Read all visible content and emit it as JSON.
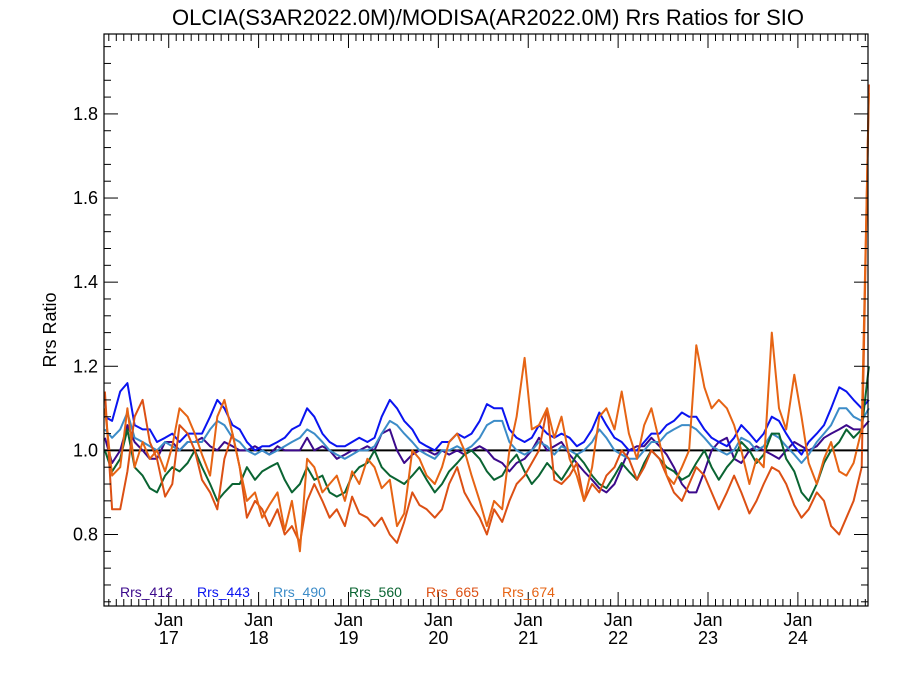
{
  "chart_data": {
    "type": "line",
    "title": "OLCIA(S3AR2022.0M)/MODISA(AR2022.0M)  Rrs Ratios for SIO",
    "xlabel": "",
    "ylabel": "Rrs Ratio",
    "ylim": [
      0.63,
      1.99
    ],
    "xlim": [
      2016.28,
      2024.78
    ],
    "yticks": [
      0.8,
      1.0,
      1.2,
      1.4,
      1.6,
      1.8
    ],
    "ytick_labels": [
      "0.8",
      "1.0",
      "1.2",
      "1.4",
      "1.6",
      "1.8"
    ],
    "xticks": [
      {
        "x": 2017,
        "month": "Jan",
        "year": "17"
      },
      {
        "x": 2018,
        "month": "Jan",
        "year": "18"
      },
      {
        "x": 2019,
        "month": "Jan",
        "year": "19"
      },
      {
        "x": 2020,
        "month": "Jan",
        "year": "20"
      },
      {
        "x": 2021,
        "month": "Jan",
        "year": "21"
      },
      {
        "x": 2022,
        "month": "Jan",
        "year": "22"
      },
      {
        "x": 2023,
        "month": "Jan",
        "year": "23"
      },
      {
        "x": 2024,
        "month": "Jan",
        "year": "24"
      }
    ],
    "reference_line": 1.0,
    "legend_position": "bottom-left",
    "x": [
      2016.29,
      2016.37,
      2016.46,
      2016.54,
      2016.62,
      2016.71,
      2016.79,
      2016.87,
      2016.96,
      2017.04,
      2017.12,
      2017.21,
      2017.29,
      2017.37,
      2017.46,
      2017.54,
      2017.62,
      2017.71,
      2017.79,
      2017.87,
      2017.96,
      2018.04,
      2018.12,
      2018.21,
      2018.29,
      2018.37,
      2018.46,
      2018.54,
      2018.62,
      2018.71,
      2018.79,
      2018.87,
      2018.96,
      2019.04,
      2019.12,
      2019.21,
      2019.29,
      2019.37,
      2019.46,
      2019.54,
      2019.62,
      2019.71,
      2019.79,
      2019.87,
      2019.96,
      2020.04,
      2020.12,
      2020.21,
      2020.29,
      2020.37,
      2020.46,
      2020.54,
      2020.62,
      2020.71,
      2020.79,
      2020.87,
      2020.96,
      2021.04,
      2021.12,
      2021.21,
      2021.29,
      2021.37,
      2021.46,
      2021.54,
      2021.62,
      2021.71,
      2021.79,
      2021.87,
      2021.96,
      2022.04,
      2022.12,
      2022.21,
      2022.29,
      2022.37,
      2022.46,
      2022.54,
      2022.62,
      2022.71,
      2022.79,
      2022.87,
      2022.96,
      2023.04,
      2023.12,
      2023.21,
      2023.29,
      2023.37,
      2023.46,
      2023.54,
      2023.62,
      2023.71,
      2023.79,
      2023.87,
      2023.96,
      2024.04,
      2024.12,
      2024.21,
      2024.29,
      2024.37,
      2024.46,
      2024.54,
      2024.62,
      2024.71,
      2024.79
    ],
    "series": [
      {
        "name": "Rrs_412",
        "color": "#3c0a8c",
        "values": [
          1.03,
          0.97,
          1.0,
          1.06,
          1.02,
          1.0,
          0.98,
          0.98,
          1.02,
          1.02,
          1.0,
          1.02,
          1.02,
          1.03,
          1.01,
          1.0,
          1.02,
          1.01,
          1.0,
          1.0,
          1.01,
          1.0,
          0.99,
          1.01,
          1.0,
          1.0,
          1.0,
          1.03,
          1.0,
          1.01,
          1.0,
          0.98,
          0.99,
          1.0,
          1.0,
          1.01,
          1.0,
          1.04,
          1.05,
          1.0,
          0.97,
          0.99,
          1.0,
          1.0,
          0.99,
          1.0,
          0.99,
          1.0,
          0.99,
          1.0,
          1.01,
          1.0,
          0.98,
          0.97,
          0.95,
          0.97,
          0.98,
          1.0,
          1.03,
          1.0,
          1.01,
          1.02,
          0.99,
          0.97,
          0.95,
          0.93,
          0.91,
          0.9,
          0.92,
          0.96,
          1.0,
          1.01,
          1.01,
          1.03,
          1.01,
          0.99,
          0.96,
          0.92,
          0.9,
          0.9,
          0.95,
          1.0,
          1.02,
          1.03,
          0.98,
          0.97,
          1.0,
          1.01,
          1.0,
          0.99,
          0.98,
          1.0,
          1.02,
          1.01,
          1.0,
          1.01,
          1.03,
          1.04,
          1.05,
          1.06,
          1.05,
          1.05,
          1.07
        ]
      },
      {
        "name": "Rrs_443",
        "color": "#0a14f0",
        "values": [
          1.08,
          1.07,
          1.14,
          1.16,
          1.06,
          1.05,
          1.05,
          1.02,
          1.03,
          1.04,
          1.02,
          1.04,
          1.04,
          1.04,
          1.08,
          1.12,
          1.1,
          1.06,
          1.05,
          1.02,
          1.0,
          1.01,
          1.01,
          1.02,
          1.03,
          1.05,
          1.06,
          1.1,
          1.08,
          1.04,
          1.02,
          1.01,
          1.01,
          1.02,
          1.03,
          1.02,
          1.03,
          1.08,
          1.12,
          1.1,
          1.07,
          1.05,
          1.02,
          1.01,
          1.0,
          1.02,
          1.02,
          1.04,
          1.03,
          1.04,
          1.07,
          1.11,
          1.1,
          1.1,
          1.05,
          1.03,
          1.02,
          1.03,
          1.06,
          1.04,
          1.03,
          1.04,
          1.03,
          1.01,
          1.02,
          1.05,
          1.09,
          1.06,
          1.03,
          1.02,
          1.0,
          1.0,
          1.02,
          1.04,
          1.04,
          1.06,
          1.07,
          1.09,
          1.08,
          1.08,
          1.05,
          1.03,
          1.02,
          1.01,
          1.03,
          1.06,
          1.04,
          1.02,
          1.04,
          1.08,
          1.07,
          1.04,
          1.01,
          0.99,
          1.02,
          1.04,
          1.06,
          1.1,
          1.15,
          1.14,
          1.12,
          1.1,
          1.12
        ]
      },
      {
        "name": "Rrs_490",
        "color": "#3c8cc8",
        "values": [
          1.05,
          1.03,
          1.05,
          1.09,
          1.03,
          1.02,
          1.01,
          1.0,
          1.02,
          1.01,
          1.0,
          1.02,
          1.02,
          1.02,
          1.05,
          1.07,
          1.06,
          1.03,
          1.02,
          1.0,
          0.99,
          1.0,
          0.99,
          1.0,
          1.01,
          1.02,
          1.03,
          1.05,
          1.04,
          1.02,
          1.0,
          0.99,
          0.98,
          0.99,
          1.0,
          1.0,
          1.01,
          1.04,
          1.07,
          1.06,
          1.04,
          1.02,
          1.0,
          0.99,
          0.98,
          1.0,
          1.0,
          1.01,
          1.0,
          1.01,
          1.03,
          1.06,
          1.07,
          1.07,
          1.02,
          1.0,
          0.99,
          1.0,
          1.02,
          1.01,
          0.99,
          1.01,
          1.0,
          0.99,
          1.0,
          1.02,
          1.05,
          1.03,
          1.0,
          0.99,
          0.98,
          0.98,
          1.0,
          1.02,
          1.02,
          1.04,
          1.05,
          1.06,
          1.06,
          1.05,
          1.03,
          1.01,
          1.0,
          0.99,
          1.0,
          1.03,
          1.02,
          1.0,
          1.01,
          1.04,
          1.03,
          1.01,
          0.99,
          0.97,
          0.99,
          1.02,
          1.04,
          1.06,
          1.1,
          1.1,
          1.08,
          1.07,
          1.1
        ]
      },
      {
        "name": "Rrs_560",
        "color": "#0a6432",
        "values": [
          1.0,
          0.95,
          0.98,
          1.05,
          0.96,
          0.94,
          0.91,
          0.9,
          0.94,
          0.96,
          0.95,
          0.97,
          1.0,
          0.96,
          0.92,
          0.88,
          0.9,
          0.92,
          0.92,
          0.96,
          0.93,
          0.95,
          0.96,
          0.97,
          0.93,
          0.9,
          0.92,
          0.96,
          0.93,
          0.94,
          0.9,
          0.89,
          0.9,
          0.94,
          0.96,
          0.97,
          1.0,
          0.96,
          0.94,
          0.93,
          0.92,
          0.94,
          0.96,
          0.93,
          0.9,
          0.92,
          0.95,
          0.97,
          0.99,
          1.0,
          0.98,
          0.95,
          0.93,
          0.94,
          0.97,
          0.99,
          0.95,
          0.92,
          0.94,
          0.97,
          0.95,
          0.93,
          0.96,
          0.99,
          0.97,
          0.94,
          0.92,
          0.91,
          0.94,
          0.97,
          0.95,
          0.93,
          0.97,
          1.0,
          0.98,
          0.96,
          0.95,
          0.93,
          0.94,
          0.97,
          1.0,
          0.96,
          0.93,
          0.96,
          0.98,
          1.02,
          1.0,
          0.97,
          0.99,
          1.04,
          1.04,
          0.98,
          0.95,
          0.9,
          0.88,
          0.92,
          0.97,
          1.0,
          1.02,
          1.05,
          1.03,
          1.05,
          1.2
        ]
      },
      {
        "name": "Rrs_665",
        "color": "#dc5014",
        "values": [
          1.14,
          0.86,
          0.86,
          0.95,
          1.08,
          1.12,
          1.02,
          0.98,
          0.89,
          0.92,
          1.06,
          1.04,
          1.0,
          0.93,
          0.9,
          0.86,
          0.98,
          1.04,
          0.96,
          0.84,
          0.88,
          0.86,
          0.82,
          0.86,
          0.8,
          0.82,
          0.78,
          0.88,
          0.92,
          0.88,
          0.84,
          0.86,
          0.82,
          0.89,
          0.85,
          0.84,
          0.82,
          0.84,
          0.8,
          0.78,
          0.83,
          0.9,
          0.87,
          0.86,
          0.84,
          0.86,
          0.92,
          0.96,
          0.9,
          0.87,
          0.84,
          0.8,
          0.86,
          0.83,
          0.88,
          0.92,
          0.94,
          0.97,
          1.0,
          1.1,
          0.93,
          0.92,
          0.94,
          0.97,
          0.88,
          0.92,
          0.9,
          0.94,
          0.96,
          1.0,
          0.98,
          0.93,
          0.96,
          1.0,
          0.98,
          0.94,
          0.9,
          0.88,
          0.92,
          0.96,
          0.94,
          0.9,
          0.86,
          0.9,
          0.94,
          0.9,
          0.85,
          0.88,
          0.92,
          0.96,
          0.95,
          0.92,
          0.87,
          0.84,
          0.86,
          0.9,
          0.88,
          0.82,
          0.8,
          0.84,
          0.88,
          0.96,
          1.87
        ]
      },
      {
        "name": "Rrs_674",
        "color": "#e66414",
        "values": [
          1.1,
          0.94,
          0.96,
          1.1,
          0.96,
          1.02,
          0.98,
          1.0,
          0.95,
          1.01,
          1.1,
          1.08,
          1.04,
          0.99,
          0.94,
          1.08,
          1.12,
          1.04,
          0.96,
          0.88,
          0.9,
          0.84,
          0.87,
          0.9,
          0.81,
          0.88,
          0.76,
          0.98,
          0.96,
          0.9,
          0.92,
          0.94,
          0.88,
          0.95,
          0.92,
          0.98,
          0.96,
          0.91,
          0.93,
          0.82,
          0.85,
          1.0,
          0.98,
          0.94,
          0.92,
          0.96,
          1.02,
          1.04,
          1.0,
          0.94,
          0.88,
          0.82,
          0.88,
          0.86,
          1.0,
          1.08,
          1.22,
          1.05,
          1.06,
          1.1,
          1.03,
          1.08,
          0.98,
          0.94,
          0.88,
          0.96,
          1.08,
          1.1,
          1.05,
          1.14,
          1.04,
          0.98,
          1.06,
          1.1,
          1.02,
          0.94,
          0.92,
          0.96,
          1.0,
          1.25,
          1.15,
          1.1,
          1.12,
          1.1,
          1.06,
          1.0,
          0.92,
          0.98,
          0.96,
          1.28,
          1.1,
          1.05,
          1.18,
          1.08,
          0.97,
          0.92,
          0.98,
          1.02,
          0.95,
          0.94,
          0.97,
          1.05,
          1.85
        ]
      }
    ]
  }
}
